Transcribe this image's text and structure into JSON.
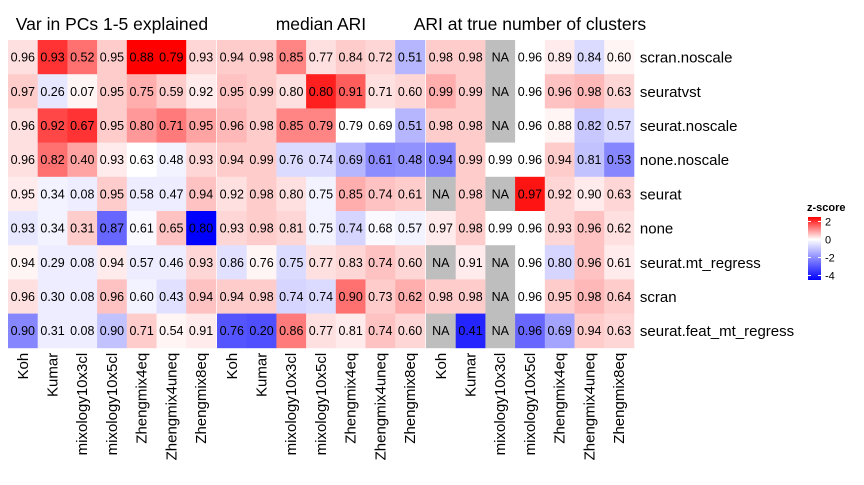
{
  "chart_data": {
    "type": "heatmap",
    "rows": [
      "scran.noscale",
      "seuratvst",
      "seurat.noscale",
      "none.noscale",
      "seurat",
      "none",
      "seurat.mt_regress",
      "scran",
      "seurat.feat_mt_regress"
    ],
    "columns": [
      "Koh",
      "Kumar",
      "mixology10x3cl",
      "mixology10x5cl",
      "Zhengmix4eq",
      "Zhengmix4uneq",
      "Zhengmix8eq"
    ],
    "panels": [
      {
        "title": "Var in PCs 1-5 explained",
        "values": [
          [
            0.96,
            0.93,
            0.52,
            0.95,
            0.88,
            0.79,
            0.93
          ],
          [
            0.97,
            0.26,
            0.07,
            0.95,
            0.75,
            0.59,
            0.92
          ],
          [
            0.96,
            0.92,
            0.67,
            0.95,
            0.8,
            0.71,
            0.95
          ],
          [
            0.96,
            0.82,
            0.4,
            0.93,
            0.63,
            0.48,
            0.93
          ],
          [
            0.95,
            0.34,
            0.08,
            0.95,
            0.58,
            0.47,
            0.94
          ],
          [
            0.93,
            0.34,
            0.31,
            0.87,
            0.61,
            0.65,
            0.8
          ],
          [
            0.94,
            0.29,
            0.08,
            0.94,
            0.57,
            0.46,
            0.93
          ],
          [
            0.96,
            0.3,
            0.08,
            0.96,
            0.6,
            0.43,
            0.94
          ],
          [
            0.9,
            0.31,
            0.08,
            0.9,
            0.71,
            0.54,
            0.91
          ]
        ],
        "zscores": [
          [
            0.3,
            2.0,
            1.4,
            0.5,
            2.8,
            2.7,
            0.4
          ],
          [
            0.5,
            -0.4,
            0.1,
            0.5,
            0.8,
            0.5,
            0.2
          ],
          [
            0.3,
            1.8,
            2.0,
            0.5,
            1.0,
            1.3,
            0.9
          ],
          [
            0.3,
            1.4,
            0.9,
            0.2,
            0.0,
            -0.2,
            0.4
          ],
          [
            0.2,
            -0.2,
            -0.3,
            0.5,
            -0.3,
            -0.3,
            0.6
          ],
          [
            -0.4,
            -0.2,
            0.5,
            -2.5,
            -0.1,
            0.6,
            -4.2
          ],
          [
            0.1,
            -0.3,
            -0.3,
            0.2,
            -0.3,
            -0.3,
            0.4
          ],
          [
            0.3,
            -0.3,
            -0.3,
            0.6,
            -0.2,
            -0.5,
            0.6
          ],
          [
            -2.0,
            -0.3,
            -0.3,
            -1.0,
            0.5,
            0.1,
            0.2
          ]
        ]
      },
      {
        "title": "median ARI",
        "values": [
          [
            0.94,
            0.98,
            0.85,
            0.77,
            0.84,
            0.72,
            0.51
          ],
          [
            0.95,
            0.99,
            0.8,
            0.8,
            0.91,
            0.71,
            0.6
          ],
          [
            0.96,
            0.98,
            0.85,
            0.79,
            0.79,
            0.69,
            0.51
          ],
          [
            0.94,
            0.99,
            0.76,
            0.74,
            0.69,
            0.61,
            0.48
          ],
          [
            0.92,
            0.98,
            0.8,
            0.75,
            0.85,
            0.74,
            0.61
          ],
          [
            0.93,
            0.98,
            0.81,
            0.75,
            0.74,
            0.68,
            0.57
          ],
          [
            0.86,
            0.76,
            0.75,
            0.77,
            0.83,
            0.74,
            0.6
          ],
          [
            0.94,
            0.98,
            0.74,
            0.74,
            0.9,
            0.73,
            0.62
          ],
          [
            0.76,
            0.2,
            0.86,
            0.77,
            0.81,
            0.74,
            0.6
          ]
        ],
        "zscores": [
          [
            0.5,
            0.5,
            1.2,
            0.3,
            0.5,
            0.4,
            -1.2
          ],
          [
            0.6,
            0.5,
            0.3,
            2.2,
            1.6,
            0.3,
            0.4
          ],
          [
            0.7,
            0.5,
            1.2,
            1.2,
            0.0,
            0.0,
            -1.2
          ],
          [
            0.5,
            0.5,
            -0.6,
            -0.6,
            -1.2,
            -1.9,
            -1.8
          ],
          [
            0.3,
            0.5,
            0.3,
            -0.2,
            0.8,
            0.6,
            0.5
          ],
          [
            0.4,
            0.5,
            0.4,
            -0.2,
            -0.7,
            -0.1,
            -0.2
          ],
          [
            -0.5,
            0.1,
            -0.6,
            0.3,
            0.4,
            0.6,
            0.4
          ],
          [
            0.5,
            0.5,
            -0.7,
            -0.6,
            1.4,
            0.5,
            0.8
          ],
          [
            -2.8,
            -2.9,
            1.3,
            0.3,
            0.2,
            0.6,
            0.4
          ]
        ]
      },
      {
        "title": "ARI at true number of clusters",
        "values": [
          [
            0.98,
            0.98,
            null,
            0.96,
            0.89,
            0.84,
            0.6
          ],
          [
            0.99,
            0.99,
            null,
            0.96,
            0.96,
            0.98,
            0.63
          ],
          [
            0.98,
            0.98,
            null,
            0.96,
            0.88,
            0.82,
            0.57
          ],
          [
            0.94,
            0.99,
            0.99,
            0.96,
            0.94,
            0.81,
            0.53
          ],
          [
            null,
            0.98,
            null,
            0.97,
            0.92,
            0.9,
            0.63
          ],
          [
            0.97,
            0.98,
            0.99,
            0.96,
            0.93,
            0.96,
            0.62
          ],
          [
            null,
            0.91,
            null,
            0.96,
            0.8,
            0.96,
            0.61
          ],
          [
            0.98,
            0.98,
            null,
            0.96,
            0.95,
            0.98,
            0.64
          ],
          [
            null,
            0.41,
            null,
            0.96,
            0.69,
            0.94,
            0.63
          ]
        ],
        "zscores": [
          [
            0.5,
            0.5,
            null,
            0.0,
            0.2,
            -0.6,
            0.1
          ],
          [
            0.8,
            0.5,
            null,
            0.0,
            0.6,
            0.7,
            0.4
          ],
          [
            0.5,
            0.5,
            null,
            0.0,
            0.1,
            -0.9,
            -0.6
          ],
          [
            -2.0,
            0.5,
            0.0,
            0.0,
            0.5,
            -1.0,
            -2.0
          ],
          [
            null,
            0.5,
            null,
            2.3,
            0.4,
            0.2,
            0.4
          ],
          [
            0.2,
            0.5,
            0.0,
            0.0,
            0.4,
            0.6,
            0.3
          ],
          [
            null,
            0.2,
            null,
            0.0,
            -0.7,
            0.6,
            0.2
          ],
          [
            0.5,
            0.5,
            null,
            0.0,
            0.5,
            0.7,
            0.5
          ],
          [
            null,
            -3.6,
            null,
            -2.5,
            -1.5,
            0.5,
            0.4
          ]
        ]
      }
    ],
    "na_label": "NA",
    "legend": {
      "title": "z-score",
      "ticks": [
        2,
        0,
        -2,
        -4
      ],
      "tick_labels": [
        "2",
        "0",
        "-2",
        "-4"
      ],
      "range": [
        -4.5,
        2.5
      ],
      "placement": "right"
    },
    "colors": {
      "low": "#0000ff",
      "mid": "#ffffff",
      "high": "#ff0000",
      "na": "#bebebe"
    }
  }
}
